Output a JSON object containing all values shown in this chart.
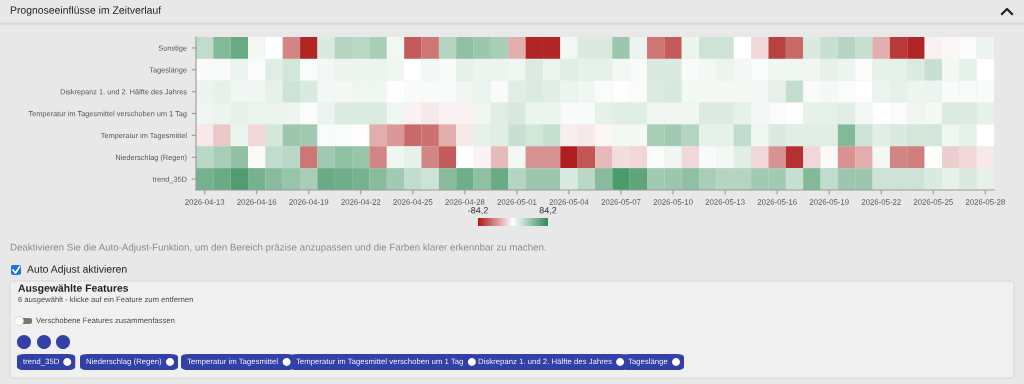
{
  "chart_data": {
    "type": "heatmap",
    "title": "Prognoseeinflüsse im Zeitverlauf",
    "categories": [
      "2026-04-13",
      null,
      null,
      "2026-04-16",
      null,
      null,
      "2026-04-19",
      null,
      null,
      "2026-04-22",
      null,
      null,
      "2026-04-25",
      null,
      null,
      "2026-04-28",
      null,
      null,
      "2026-05-01",
      null,
      null,
      "2026-05-04",
      null,
      null,
      "2026-05-07",
      null,
      null,
      "2026-05-10",
      null,
      null,
      "2026-05-13",
      null,
      null,
      "2026-05-16",
      null,
      null,
      "2026-05-19",
      null,
      null,
      "2026-05-22",
      null,
      null,
      "2026-05-25",
      null,
      null,
      "2026-05-28"
    ],
    "y_categories": [
      "Sonstige",
      "Tageslänge",
      "Diskrepanz 1. und 2. Hälfte des Jahres",
      "Temperatur im Tagesmittel verschoben um 1 Tag",
      "Temperatur im Tagesmittel",
      "Niederschlag (Regen)",
      "trend_35D"
    ],
    "cells": [
      [
        25,
        50,
        60,
        5,
        0,
        -45,
        -80,
        15,
        30,
        28,
        35,
        5,
        -60,
        -50,
        30,
        45,
        40,
        35,
        -30,
        -80,
        -80,
        5,
        15,
        15,
        40,
        8,
        -50,
        -60,
        8,
        20,
        20,
        0,
        -15,
        -70,
        -55,
        15,
        22,
        30,
        22,
        -30,
        -72,
        -80,
        -5,
        -3,
        2,
        8
      ],
      [
        3,
        3,
        8,
        2,
        12,
        18,
        2,
        5,
        8,
        8,
        8,
        6,
        0,
        5,
        3,
        10,
        8,
        8,
        6,
        14,
        8,
        12,
        10,
        10,
        5,
        3,
        15,
        15,
        3,
        5,
        8,
        5,
        2,
        6,
        6,
        6,
        10,
        8,
        2,
        10,
        10,
        14,
        22,
        5,
        10,
        0
      ],
      [
        8,
        10,
        6,
        6,
        10,
        20,
        15,
        5,
        5,
        6,
        6,
        1,
        3,
        3,
        3,
        6,
        8,
        3,
        12,
        14,
        12,
        8,
        6,
        2,
        1,
        2,
        14,
        16,
        5,
        4,
        5,
        4,
        4,
        10,
        24,
        3,
        4,
        2,
        0,
        8,
        10,
        7,
        8,
        3,
        3,
        3
      ],
      [
        6,
        8,
        10,
        8,
        8,
        7,
        2,
        8,
        14,
        14,
        14,
        6,
        -5,
        -8,
        -4,
        -4,
        6,
        12,
        16,
        8,
        8,
        3,
        3,
        10,
        12,
        12,
        6,
        6,
        6,
        14,
        14,
        10,
        4,
        2,
        1,
        10,
        10,
        12,
        5,
        0,
        2,
        6,
        4,
        14,
        14,
        10
      ],
      [
        -8,
        -20,
        8,
        -15,
        18,
        40,
        38,
        2,
        2,
        -1,
        -30,
        -38,
        -55,
        -52,
        -30,
        -8,
        10,
        12,
        22,
        18,
        22,
        -6,
        -8,
        -3,
        5,
        4,
        35,
        38,
        30,
        10,
        10,
        25,
        6,
        15,
        12,
        12,
        12,
        50,
        20,
        12,
        15,
        18,
        18,
        6,
        10,
        0
      ],
      [
        28,
        35,
        45,
        -2,
        25,
        28,
        -50,
        38,
        45,
        42,
        -45,
        6,
        10,
        -45,
        -60,
        0,
        -4,
        -25,
        5,
        -40,
        -40,
        -82,
        -62,
        -25,
        -12,
        -15,
        2,
        6,
        -15,
        3,
        5,
        12,
        -15,
        -40,
        -75,
        -15,
        -2,
        -40,
        -30,
        5,
        -45,
        -48,
        1,
        -18,
        -15,
        -8
      ],
      [
        55,
        60,
        70,
        55,
        48,
        42,
        35,
        60,
        58,
        55,
        48,
        38,
        25,
        20,
        48,
        58,
        45,
        60,
        30,
        40,
        40,
        15,
        28,
        48,
        72,
        65,
        38,
        40,
        45,
        35,
        30,
        30,
        38,
        38,
        22,
        50,
        25,
        40,
        40,
        20,
        20,
        20,
        15,
        10,
        15,
        10
      ]
    ],
    "clim": [
      -84.2,
      84.2
    ],
    "cticks": [
      {
        "value": -84.2,
        "label": "-84,2"
      },
      {
        "value": 84.2,
        "label": "84,2"
      }
    ],
    "annotations": [
      "Deaktivieren Sie die Auto-Adjust-Funktion, um den Bereich präzise anzupassen und die Farben klarer erkennbar zu machen.",
      "Auto Adjust aktivieren",
      "Ausgewählte Features",
      "6 ausgewählt - klicke auf ein Feature zum entfernen",
      "Verschobene Features zusammenfassen",
      "trend_35D",
      "Niederschlag (Regen)",
      "Temperatur im Tagesmittel",
      "Temperatur im Tagesmittel verschoben um 1 Tag",
      "Diskrepanz 1. und 2. Hälfte des Jahres",
      "Tageslänge"
    ]
  }
}
